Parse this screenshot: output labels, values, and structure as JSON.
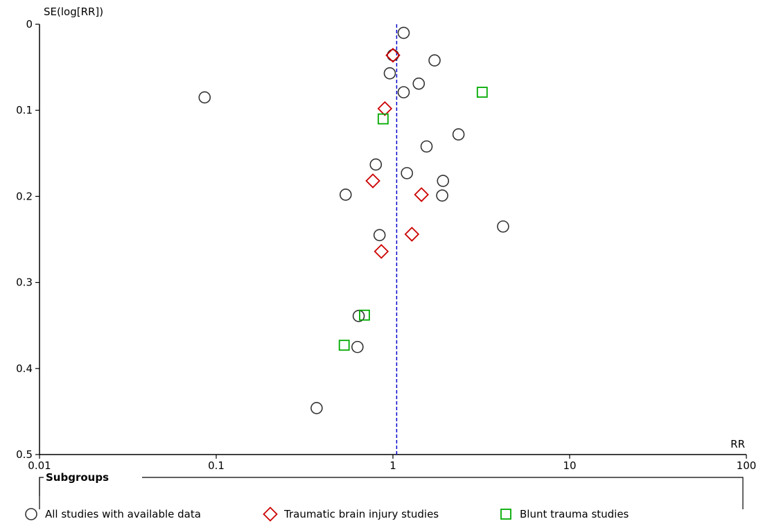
{
  "chart_data": {
    "type": "scatter",
    "title": "",
    "ylabel": "SE(log[RR])",
    "xlabel": "RR",
    "x_scale": "log",
    "xlim": [
      0.01,
      100
    ],
    "ylim": [
      0,
      0.5
    ],
    "y_inverted": true,
    "x_ticks": [
      "0.01",
      "0.1",
      "1",
      "10",
      "100"
    ],
    "y_ticks": [
      "0",
      "0.1",
      "0.2",
      "0.3",
      "0.4",
      "0.5"
    ],
    "grid": false,
    "reference_line": {
      "x": 1.05,
      "style": "dashed",
      "color": "#0000cc"
    },
    "legend": {
      "title": "Subgroups",
      "placement": "bottom"
    },
    "series": [
      {
        "name": "All studies with available data",
        "marker": "circle",
        "color": "#333333",
        "points": [
          {
            "x": 1.15,
            "y": 0.01
          },
          {
            "x": 1.0,
            "y": 0.036
          },
          {
            "x": 1.72,
            "y": 0.042
          },
          {
            "x": 0.96,
            "y": 0.057
          },
          {
            "x": 1.4,
            "y": 0.069
          },
          {
            "x": 1.15,
            "y": 0.079
          },
          {
            "x": 0.086,
            "y": 0.085
          },
          {
            "x": 2.35,
            "y": 0.128
          },
          {
            "x": 1.55,
            "y": 0.142
          },
          {
            "x": 0.8,
            "y": 0.163
          },
          {
            "x": 1.2,
            "y": 0.173
          },
          {
            "x": 1.92,
            "y": 0.182
          },
          {
            "x": 0.54,
            "y": 0.198
          },
          {
            "x": 1.9,
            "y": 0.199
          },
          {
            "x": 4.2,
            "y": 0.235
          },
          {
            "x": 0.84,
            "y": 0.245
          },
          {
            "x": 0.64,
            "y": 0.339
          },
          {
            "x": 0.63,
            "y": 0.375
          },
          {
            "x": 0.37,
            "y": 0.446
          }
        ]
      },
      {
        "name": "Traumatic brain injury studies",
        "marker": "diamond",
        "color": "#cc0000",
        "points": [
          {
            "x": 1.0,
            "y": 0.036
          },
          {
            "x": 0.9,
            "y": 0.098
          },
          {
            "x": 0.77,
            "y": 0.182
          },
          {
            "x": 1.45,
            "y": 0.198
          },
          {
            "x": 1.28,
            "y": 0.244
          },
          {
            "x": 0.86,
            "y": 0.264
          }
        ]
      },
      {
        "name": "Blunt trauma studies",
        "marker": "square",
        "color": "#00aa00",
        "points": [
          {
            "x": 3.2,
            "y": 0.079
          },
          {
            "x": 0.88,
            "y": 0.11
          },
          {
            "x": 0.69,
            "y": 0.338
          },
          {
            "x": 0.53,
            "y": 0.373
          }
        ]
      }
    ]
  }
}
